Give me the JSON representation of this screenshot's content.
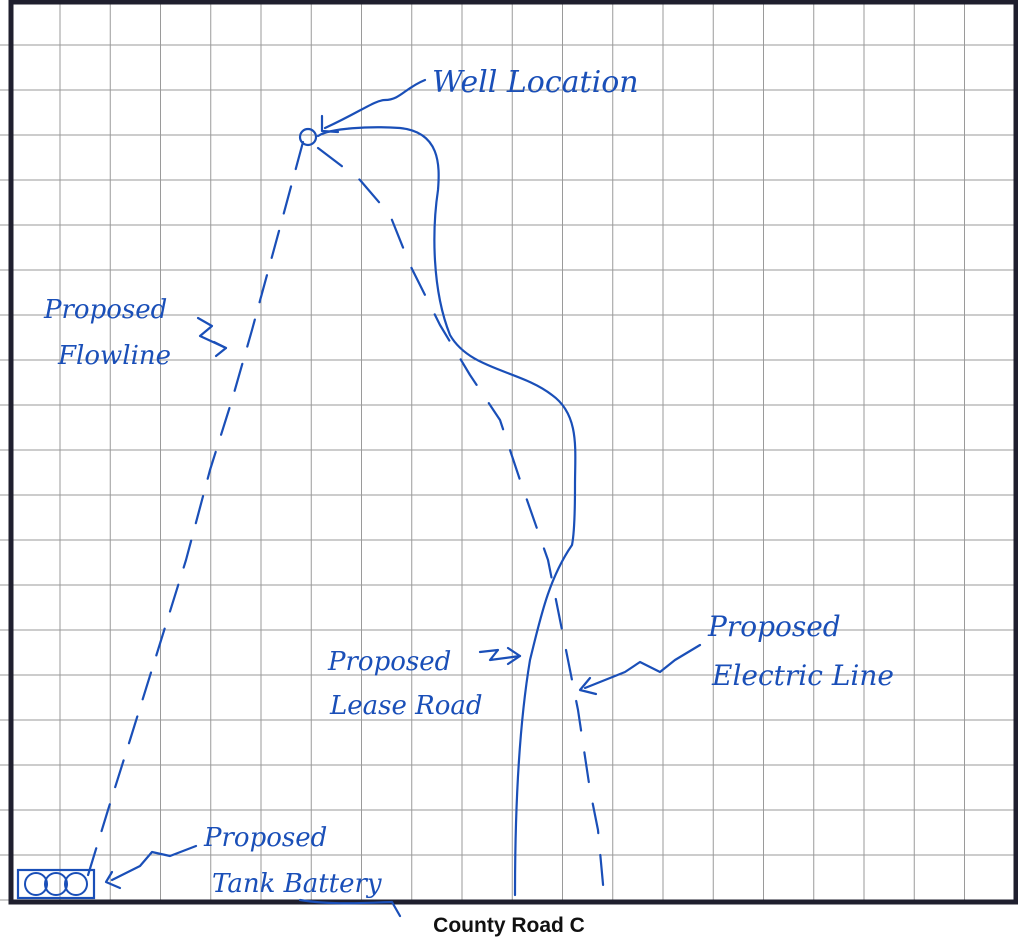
{
  "labels": {
    "well_location": "Well Location",
    "proposed_flowline_line1": "Proposed",
    "proposed_flowline_line2": "Flowline",
    "proposed_lease_road_line1": "Proposed",
    "proposed_lease_road_line2": "Lease Road",
    "proposed_electric_line_line1": "Proposed",
    "proposed_electric_line_line2": "Electric Line",
    "proposed_tank_battery_line1": "Proposed",
    "proposed_tank_battery_line2": "Tank Battery",
    "county_road": "County Road C"
  },
  "colors": {
    "ink": "#1a4fb8",
    "grid": "#9a9a9a",
    "frame": "#1f1f2e",
    "caption": "#111111"
  }
}
